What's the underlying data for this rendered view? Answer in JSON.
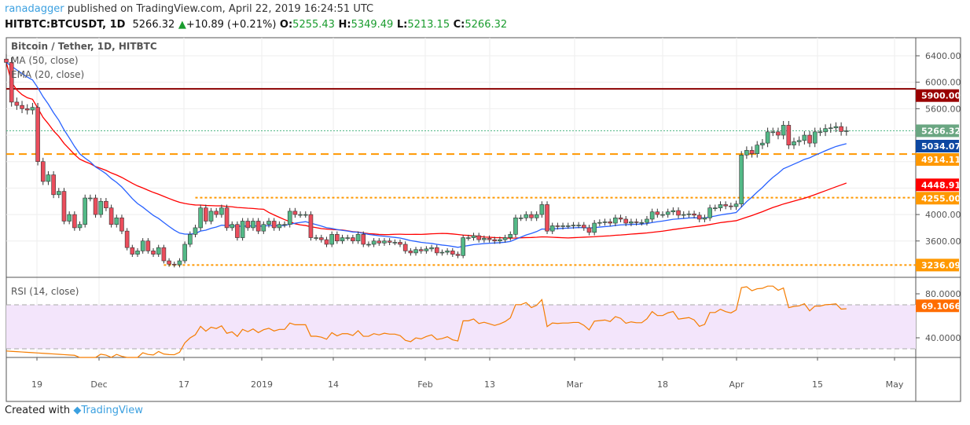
{
  "header": {
    "user": "ranadagger",
    "published": "published on TradingView.com, April 22, 2019 16:24:51 UTC",
    "symbol": "HITBTC:BTCUSDT, 1D",
    "last": "5266.32",
    "change": "+10.89 (+0.21%)",
    "o_label": "O:",
    "o": "5255.43",
    "h_label": "H:",
    "h": "5349.49",
    "l_label": "L:",
    "l": "5213.15",
    "c_label": "C:",
    "c": "5266.32"
  },
  "legend": {
    "title": "Bitcoin / Tether, 1D, HITBTC",
    "ma": "MA (50, close)",
    "ema": "EMA (20, close)",
    "rsi": "RSI (14, close)"
  },
  "footer": {
    "created": "Created with",
    "brand": "TradingView"
  },
  "colors": {
    "up": "#53b987",
    "down": "#eb4d5c",
    "ma": "#ff0000",
    "ema": "#2962ff",
    "rsi": "#f57c00",
    "rsi_band": "#f3e5fb",
    "orange": "#ff9800",
    "resist": "#8b0000"
  },
  "chart_data": [
    {
      "type": "candlestick",
      "title": "Bitcoin / Tether, 1D, HITBTC",
      "ylim": [
        3100,
        6600
      ],
      "y_ticks": [
        "6400.00",
        "6000.00",
        "5600.00",
        "4000.00",
        "3600.00"
      ],
      "x_ticks": [
        "19",
        "Dec",
        "17",
        "2019",
        "14",
        "Feb",
        "13",
        "Mar",
        "18",
        "Apr",
        "15",
        "May"
      ],
      "price_labels": [
        {
          "value": "5900.00",
          "color": "#990000"
        },
        {
          "value": "5266.32",
          "color": "#6aa682"
        },
        {
          "value": "5034.07",
          "color": "#0d47a1"
        },
        {
          "value": "4914.11",
          "color": "#ff9800"
        },
        {
          "value": "4448.91",
          "color": "#ff0000"
        },
        {
          "value": "4255.00",
          "color": "#ff9800"
        },
        {
          "value": "3236.09",
          "color": "#ff9800"
        }
      ],
      "hlines": [
        {
          "value": 5900,
          "style": "solid"
        },
        {
          "value": 4914.11,
          "style": "dashed"
        },
        {
          "value": 4255,
          "style": "dotted",
          "from": "12-19"
        },
        {
          "value": 3236.09,
          "style": "dotted",
          "from": "12-13"
        }
      ],
      "candles": [
        [
          "11-13",
          6350,
          6300
        ],
        [
          "11-14",
          6300,
          5700
        ],
        [
          "11-15",
          5700,
          5650
        ],
        [
          "11-16",
          5650,
          5600
        ],
        [
          "11-17",
          5600,
          5580
        ],
        [
          "11-18",
          5580,
          5620
        ],
        [
          "11-19",
          5620,
          4800
        ],
        [
          "11-20",
          4800,
          4500
        ],
        [
          "11-21",
          4500,
          4600
        ],
        [
          "11-22",
          4600,
          4300
        ],
        [
          "11-23",
          4300,
          4350
        ],
        [
          "11-24",
          4350,
          3900
        ],
        [
          "11-25",
          3900,
          4000
        ],
        [
          "11-26",
          4000,
          3800
        ],
        [
          "11-27",
          3800,
          3850
        ],
        [
          "11-28",
          3850,
          4250
        ],
        [
          "11-29",
          4250,
          4250
        ],
        [
          "11-30",
          4250,
          4000
        ],
        [
          "12-01",
          4000,
          4200
        ],
        [
          "12-02",
          4200,
          4100
        ],
        [
          "12-03",
          4100,
          3850
        ],
        [
          "12-04",
          3850,
          3950
        ],
        [
          "12-05",
          3950,
          3750
        ],
        [
          "12-06",
          3750,
          3500
        ],
        [
          "12-07",
          3500,
          3400
        ],
        [
          "12-08",
          3400,
          3450
        ],
        [
          "12-09",
          3450,
          3600
        ],
        [
          "12-10",
          3600,
          3450
        ],
        [
          "12-11",
          3450,
          3400
        ],
        [
          "12-12",
          3400,
          3500
        ],
        [
          "12-13",
          3500,
          3300
        ],
        [
          "12-14",
          3300,
          3250
        ],
        [
          "12-15",
          3250,
          3240
        ],
        [
          "12-16",
          3240,
          3300
        ],
        [
          "12-17",
          3300,
          3550
        ],
        [
          "12-18",
          3550,
          3700
        ],
        [
          "12-19",
          3700,
          3800
        ],
        [
          "12-20",
          3800,
          4100
        ],
        [
          "12-21",
          4100,
          3900
        ],
        [
          "12-22",
          3900,
          4050
        ],
        [
          "12-23",
          4050,
          4000
        ],
        [
          "12-24",
          4000,
          4100
        ],
        [
          "12-25",
          4100,
          3800
        ],
        [
          "12-26",
          3800,
          3850
        ],
        [
          "12-27",
          3850,
          3650
        ],
        [
          "12-28",
          3650,
          3900
        ],
        [
          "12-29",
          3900,
          3800
        ],
        [
          "12-30",
          3800,
          3900
        ],
        [
          "12-31",
          3900,
          3750
        ],
        [
          "01-01",
          3750,
          3850
        ],
        [
          "01-02",
          3850,
          3900
        ],
        [
          "01-03",
          3900,
          3800
        ],
        [
          "01-04",
          3800,
          3850
        ],
        [
          "01-05",
          3850,
          3850
        ],
        [
          "01-06",
          3850,
          4050
        ],
        [
          "01-07",
          4050,
          4000
        ],
        [
          "01-08",
          4000,
          4000
        ],
        [
          "01-09",
          4000,
          4000
        ],
        [
          "01-10",
          4000,
          3650
        ],
        [
          "01-11",
          3650,
          3650
        ],
        [
          "01-12",
          3650,
          3620
        ],
        [
          "01-13",
          3620,
          3550
        ],
        [
          "01-14",
          3550,
          3700
        ],
        [
          "01-15",
          3700,
          3600
        ],
        [
          "01-16",
          3600,
          3650
        ],
        [
          "01-17",
          3650,
          3650
        ],
        [
          "01-18",
          3650,
          3600
        ],
        [
          "01-19",
          3600,
          3700
        ],
        [
          "01-20",
          3700,
          3550
        ],
        [
          "01-21",
          3550,
          3550
        ],
        [
          "01-22",
          3550,
          3600
        ],
        [
          "01-23",
          3600,
          3570
        ],
        [
          "01-24",
          3570,
          3600
        ],
        [
          "01-25",
          3600,
          3580
        ],
        [
          "01-26",
          3580,
          3580
        ],
        [
          "01-27",
          3580,
          3550
        ],
        [
          "01-28",
          3550,
          3450
        ],
        [
          "01-29",
          3450,
          3420
        ],
        [
          "01-30",
          3420,
          3470
        ],
        [
          "01-31",
          3470,
          3450
        ],
        [
          "02-01",
          3450,
          3480
        ],
        [
          "02-02",
          3480,
          3500
        ],
        [
          "02-03",
          3500,
          3420
        ],
        [
          "02-04",
          3420,
          3430
        ],
        [
          "02-05",
          3430,
          3450
        ],
        [
          "02-06",
          3450,
          3400
        ],
        [
          "02-07",
          3400,
          3380
        ],
        [
          "02-08",
          3380,
          3650
        ],
        [
          "02-09",
          3650,
          3650
        ],
        [
          "02-10",
          3650,
          3680
        ],
        [
          "02-11",
          3680,
          3620
        ],
        [
          "02-12",
          3620,
          3640
        ],
        [
          "02-13",
          3640,
          3620
        ],
        [
          "02-14",
          3620,
          3600
        ],
        [
          "02-15",
          3600,
          3620
        ],
        [
          "02-16",
          3620,
          3650
        ],
        [
          "02-17",
          3650,
          3700
        ],
        [
          "02-18",
          3700,
          3950
        ],
        [
          "02-19",
          3950,
          3950
        ],
        [
          "02-20",
          3950,
          4000
        ],
        [
          "02-21",
          4000,
          3950
        ],
        [
          "02-22",
          3950,
          4000
        ],
        [
          "02-23",
          4000,
          4150
        ],
        [
          "02-24",
          4150,
          3750
        ],
        [
          "02-25",
          3750,
          3830
        ],
        [
          "02-26",
          3830,
          3820
        ],
        [
          "02-27",
          3820,
          3830
        ],
        [
          "02-28",
          3830,
          3830
        ],
        [
          "03-01",
          3830,
          3840
        ],
        [
          "03-02",
          3840,
          3840
        ],
        [
          "03-03",
          3840,
          3800
        ],
        [
          "03-04",
          3800,
          3730
        ],
        [
          "03-05",
          3730,
          3870
        ],
        [
          "03-06",
          3870,
          3880
        ],
        [
          "03-07",
          3880,
          3890
        ],
        [
          "03-08",
          3890,
          3870
        ],
        [
          "03-09",
          3870,
          3950
        ],
        [
          "03-10",
          3950,
          3930
        ],
        [
          "03-11",
          3930,
          3870
        ],
        [
          "03-12",
          3870,
          3890
        ],
        [
          "03-13",
          3890,
          3880
        ],
        [
          "03-14",
          3880,
          3880
        ],
        [
          "03-15",
          3880,
          3930
        ],
        [
          "03-16",
          3930,
          4040
        ],
        [
          "03-17",
          4040,
          4000
        ],
        [
          "03-18",
          4000,
          4000
        ],
        [
          "03-19",
          4000,
          4040
        ],
        [
          "03-20",
          4040,
          4060
        ],
        [
          "03-21",
          4060,
          3990
        ],
        [
          "03-22",
          3990,
          4000
        ],
        [
          "03-23",
          4000,
          4010
        ],
        [
          "03-24",
          4010,
          3990
        ],
        [
          "03-25",
          3990,
          3930
        ],
        [
          "03-26",
          3930,
          3950
        ],
        [
          "03-27",
          3950,
          4100
        ],
        [
          "03-28",
          4100,
          4100
        ],
        [
          "03-29",
          4100,
          4150
        ],
        [
          "03-30",
          4150,
          4130
        ],
        [
          "03-31",
          4130,
          4120
        ],
        [
          "04-01",
          4120,
          4160
        ],
        [
          "04-02",
          4160,
          4900
        ],
        [
          "04-03",
          4900,
          4970
        ],
        [
          "04-04",
          4970,
          4920
        ],
        [
          "04-05",
          4920,
          5050
        ],
        [
          "04-06",
          5050,
          5080
        ],
        [
          "04-07",
          5080,
          5250
        ],
        [
          "04-08",
          5250,
          5250
        ],
        [
          "04-09",
          5250,
          5200
        ],
        [
          "04-10",
          5200,
          5350
        ],
        [
          "04-11",
          5350,
          5050
        ],
        [
          "04-12",
          5050,
          5100
        ],
        [
          "04-13",
          5100,
          5120
        ],
        [
          "04-14",
          5120,
          5200
        ],
        [
          "04-15",
          5200,
          5080
        ],
        [
          "04-16",
          5080,
          5250
        ],
        [
          "04-17",
          5250,
          5250
        ],
        [
          "04-18",
          5250,
          5300
        ],
        [
          "04-19",
          5300,
          5310
        ],
        [
          "04-20",
          5310,
          5330
        ],
        [
          "04-21",
          5330,
          5255.43
        ],
        [
          "04-22",
          5255.43,
          5266.32
        ]
      ]
    },
    {
      "type": "line",
      "title": "RSI (14, close)",
      "ylim": [
        15,
        100
      ],
      "y_ticks": [
        "80.0000",
        "40.0000"
      ],
      "band": [
        30,
        70
      ],
      "last_label": "69.1066"
    }
  ]
}
